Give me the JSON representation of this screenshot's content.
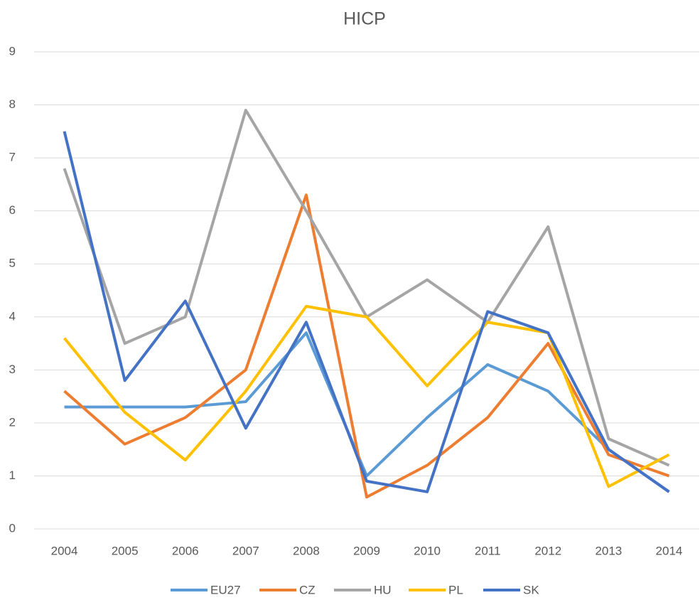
{
  "chart_data": {
    "type": "line",
    "title": "HICP",
    "categories": [
      "2004",
      "2005",
      "2006",
      "2007",
      "2008",
      "2009",
      "2010",
      "2011",
      "2012",
      "2013",
      "2014"
    ],
    "series": [
      {
        "name": "EU27",
        "color": "#5b9bd5",
        "values": [
          2.3,
          2.3,
          2.3,
          2.4,
          3.7,
          1.0,
          2.1,
          3.1,
          2.6,
          1.5,
          0.7
        ]
      },
      {
        "name": "CZ",
        "color": "#ed7d31",
        "values": [
          2.6,
          1.6,
          2.1,
          3.0,
          6.3,
          0.6,
          1.2,
          2.1,
          3.5,
          1.4,
          1.0
        ]
      },
      {
        "name": "HU",
        "color": "#a5a5a5",
        "values": [
          6.8,
          3.5,
          4.0,
          7.9,
          6.0,
          4.0,
          4.7,
          3.9,
          5.7,
          1.7,
          1.2
        ]
      },
      {
        "name": "PL",
        "color": "#ffc000",
        "values": [
          3.6,
          2.2,
          1.3,
          2.6,
          4.2,
          4.0,
          2.7,
          3.9,
          3.7,
          0.8,
          1.4
        ]
      },
      {
        "name": "SK",
        "color": "#4472c4",
        "values": [
          7.5,
          2.8,
          4.3,
          1.9,
          3.9,
          0.9,
          0.7,
          4.1,
          3.7,
          1.5,
          0.7
        ]
      }
    ],
    "ylim": [
      0,
      9
    ],
    "yticks": [
      0,
      1,
      2,
      3,
      4,
      5,
      6,
      7,
      8,
      9
    ],
    "grid": true,
    "legend": "bottom"
  }
}
